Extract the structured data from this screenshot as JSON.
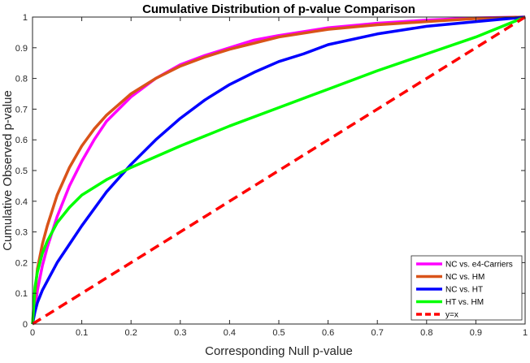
{
  "chart_data": {
    "type": "line",
    "title": "Cumulative Distribution of p-value Comparison",
    "xlabel": "Corresponding Null p-value",
    "ylabel": "Cumulative Observed p-value",
    "xlim": [
      0,
      1
    ],
    "ylim": [
      0,
      1
    ],
    "xticks": [
      "0",
      "0.1",
      "0.2",
      "0.3",
      "0.4",
      "0.5",
      "0.6",
      "0.7",
      "0.8",
      "0.9",
      "1"
    ],
    "yticks": [
      "0",
      "0.1",
      "0.2",
      "0.3",
      "0.4",
      "0.5",
      "0.6",
      "0.7",
      "0.8",
      "0.9",
      "1"
    ],
    "grid": false,
    "legend_position": "bottom-right",
    "series": [
      {
        "name": "NC vs. e4-Carriers",
        "color": "#ff00ff",
        "dash": "solid",
        "x": [
          0,
          0.005,
          0.01,
          0.02,
          0.03,
          0.05,
          0.075,
          0.1,
          0.125,
          0.15,
          0.2,
          0.25,
          0.3,
          0.35,
          0.4,
          0.45,
          0.5,
          0.6,
          0.7,
          0.8,
          0.9,
          1.0
        ],
        "y": [
          0,
          0.05,
          0.11,
          0.19,
          0.25,
          0.35,
          0.45,
          0.53,
          0.6,
          0.66,
          0.74,
          0.8,
          0.845,
          0.875,
          0.9,
          0.925,
          0.94,
          0.965,
          0.98,
          0.99,
          0.997,
          1.0
        ]
      },
      {
        "name": "NC vs. HM",
        "color": "#d95319",
        "dash": "solid",
        "x": [
          0,
          0.005,
          0.01,
          0.02,
          0.03,
          0.05,
          0.075,
          0.1,
          0.125,
          0.15,
          0.2,
          0.25,
          0.3,
          0.35,
          0.4,
          0.45,
          0.5,
          0.6,
          0.7,
          0.8,
          0.9,
          1.0
        ],
        "y": [
          0,
          0.1,
          0.18,
          0.26,
          0.32,
          0.42,
          0.51,
          0.58,
          0.635,
          0.68,
          0.75,
          0.8,
          0.84,
          0.87,
          0.895,
          0.915,
          0.935,
          0.96,
          0.975,
          0.985,
          0.995,
          1.0
        ]
      },
      {
        "name": "NC vs. HT",
        "color": "#0000ff",
        "dash": "solid",
        "x": [
          0,
          0.005,
          0.01,
          0.02,
          0.03,
          0.05,
          0.075,
          0.1,
          0.15,
          0.2,
          0.25,
          0.3,
          0.35,
          0.4,
          0.45,
          0.5,
          0.55,
          0.6,
          0.7,
          0.8,
          0.9,
          1.0
        ],
        "y": [
          0,
          0.04,
          0.07,
          0.11,
          0.14,
          0.2,
          0.26,
          0.32,
          0.43,
          0.52,
          0.6,
          0.67,
          0.73,
          0.78,
          0.82,
          0.855,
          0.88,
          0.91,
          0.945,
          0.97,
          0.985,
          1.0
        ]
      },
      {
        "name": "HT vs. HM",
        "color": "#00ff00",
        "dash": "solid",
        "x": [
          0,
          0.005,
          0.01,
          0.02,
          0.03,
          0.05,
          0.075,
          0.1,
          0.15,
          0.2,
          0.3,
          0.4,
          0.5,
          0.6,
          0.7,
          0.8,
          0.9,
          1.0
        ],
        "y": [
          0,
          0.12,
          0.17,
          0.23,
          0.27,
          0.33,
          0.38,
          0.42,
          0.47,
          0.51,
          0.58,
          0.645,
          0.705,
          0.765,
          0.825,
          0.88,
          0.935,
          1.0
        ]
      },
      {
        "name": "y=x",
        "color": "#ff0000",
        "dash": "dashed",
        "x": [
          0,
          1
        ],
        "y": [
          0,
          1
        ]
      }
    ]
  }
}
